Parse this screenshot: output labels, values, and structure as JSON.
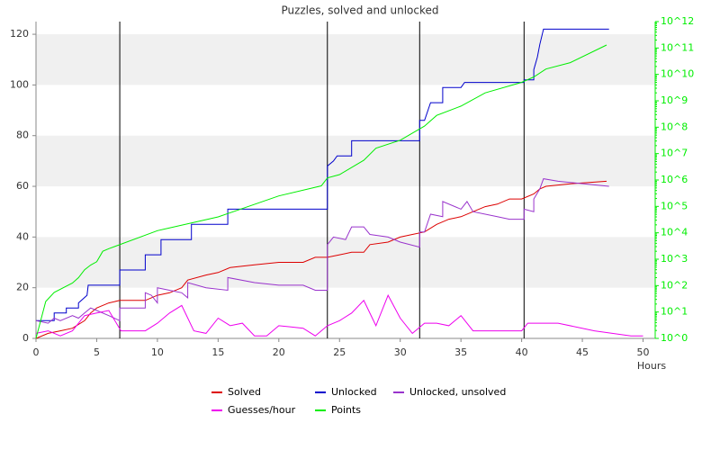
{
  "chart_data": {
    "type": "line",
    "title": "Puzzles, solved and unlocked",
    "x_label": "Hours",
    "xlim": [
      0,
      51
    ],
    "xticks": [
      0,
      5,
      10,
      15,
      20,
      25,
      30,
      35,
      40,
      45,
      50
    ],
    "ylim": [
      0,
      125
    ],
    "yticks": [
      0,
      20,
      40,
      60,
      80,
      100,
      120
    ],
    "y2lim": [
      1,
      1000000000000
    ],
    "y2scale": "log",
    "y2color": "#00ee00",
    "y2ticks": [
      {
        "value": 1,
        "label": "10^0"
      },
      {
        "value": 10,
        "label": "10^1"
      },
      {
        "value": 100,
        "label": "10^2"
      },
      {
        "value": 1000,
        "label": "10^3"
      },
      {
        "value": 10000,
        "label": "10^4"
      },
      {
        "value": 100000,
        "label": "10^5"
      },
      {
        "value": 1000000,
        "label": "10^6"
      },
      {
        "value": 10000000,
        "label": "10^7"
      },
      {
        "value": 100000000,
        "label": "10^8"
      },
      {
        "value": 1000000000,
        "label": "10^9"
      },
      {
        "value": 10000000000,
        "label": "10^10"
      },
      {
        "value": 100000000000,
        "label": "10^11"
      },
      {
        "value": 1000000000000,
        "label": "10^12"
      }
    ],
    "grid": "bands",
    "vlines": [
      6.9,
      24,
      31.6,
      40.2
    ],
    "series": [
      {
        "name": "Solved",
        "color": "#dd0000",
        "x": [
          0,
          1,
          2,
          3,
          4,
          4.5,
          5,
          6,
          6.9,
          9,
          9.5,
          10,
          11,
          12,
          12.5,
          14,
          15,
          16,
          18,
          20,
          22,
          23,
          24,
          25,
          26,
          27,
          27.5,
          29,
          30,
          31,
          32,
          33,
          34,
          35,
          36,
          37,
          38,
          39,
          40,
          41,
          41.5,
          42,
          44,
          47
        ],
        "values": [
          0,
          2,
          3,
          4,
          7,
          10,
          12,
          14,
          15,
          15,
          16,
          17,
          18,
          20,
          23,
          25,
          26,
          28,
          29,
          30,
          30,
          32,
          32,
          33,
          34,
          34,
          37,
          38,
          40,
          41,
          42,
          45,
          47,
          48,
          50,
          52,
          53,
          55,
          55,
          57,
          59,
          60,
          61,
          62
        ]
      },
      {
        "name": "Unlocked",
        "color": "#0000cc",
        "x": [
          0,
          1.5,
          1.5,
          2.5,
          2.5,
          3.5,
          3.5,
          4.2,
          4.3,
          6.9,
          6.9,
          9,
          9,
          10.3,
          10.3,
          12.8,
          12.8,
          15.8,
          15.8,
          24,
          24,
          24.5,
          24.8,
          26,
          26,
          31.6,
          31.6,
          32,
          32.5,
          33.5,
          33.5,
          35,
          35.3,
          40.2,
          40.2,
          41,
          41,
          41.3,
          41.5,
          41.8,
          47.2
        ],
        "values": [
          7,
          7,
          10,
          10,
          12,
          12,
          14,
          17,
          21,
          21,
          27,
          27,
          33,
          33,
          39,
          39,
          45,
          45,
          51,
          51,
          68,
          70,
          72,
          72,
          78,
          78,
          86,
          86,
          93,
          93,
          99,
          99,
          101,
          101,
          102,
          102,
          106,
          111,
          116,
          122,
          122
        ]
      },
      {
        "name": "Unlocked, unsolved",
        "color": "#9933cc",
        "x": [
          0,
          1,
          1.5,
          2,
          3,
          3.5,
          4,
          4.5,
          5,
          6,
          6.9,
          6.9,
          9,
          9,
          9.5,
          10,
          10,
          11,
          12,
          12.5,
          12.5,
          14,
          15.8,
          15.8,
          18,
          20,
          22,
          23,
          24,
          24,
          24.5,
          25.5,
          26,
          27,
          27.5,
          29,
          30,
          31.6,
          31.6,
          32,
          32.5,
          33.5,
          33.5,
          35,
          35.5,
          36,
          38,
          39,
          40.2,
          40.2,
          41,
          41,
          41.5,
          41.8,
          43,
          47.2
        ],
        "values": [
          7,
          6,
          8,
          7,
          9,
          8,
          10,
          12,
          11,
          9,
          7,
          12,
          12,
          18,
          17,
          14,
          20,
          19,
          18,
          16,
          22,
          20,
          19,
          24,
          22,
          21,
          21,
          19,
          19,
          37,
          40,
          39,
          44,
          44,
          41,
          40,
          38,
          36,
          42,
          42,
          49,
          48,
          54,
          51,
          54,
          50,
          48,
          47,
          47,
          51,
          50,
          55,
          59,
          63,
          62,
          60
        ]
      },
      {
        "name": "Guesses/hour",
        "color": "#ee00ee",
        "x": [
          0,
          1,
          2,
          3,
          4,
          5,
          6,
          7,
          9,
          10,
          11,
          12,
          13,
          14,
          15,
          16,
          17,
          18,
          19,
          20,
          21,
          22,
          23,
          24,
          25,
          26,
          27,
          28,
          29,
          30,
          31,
          32,
          33,
          34,
          35,
          36,
          40,
          40.5,
          43,
          46,
          49,
          50
        ],
        "values": [
          2,
          3,
          1,
          3,
          9,
          10,
          11,
          3,
          3,
          6,
          10,
          13,
          3,
          2,
          8,
          5,
          6,
          1,
          1,
          5,
          4.5,
          4,
          1,
          5,
          7,
          10,
          15,
          5,
          17,
          8,
          2,
          6,
          6,
          5,
          9,
          3,
          3,
          6,
          6,
          3,
          1,
          1
        ]
      },
      {
        "name": "Points",
        "color": "#00ee00",
        "axis": "y2",
        "x": [
          0,
          0.8,
          1.5,
          3,
          3.5,
          4,
          4.5,
          5,
          5.5,
          6,
          10,
          15,
          20,
          23.5,
          24,
          25,
          27,
          28,
          30,
          32,
          33,
          35,
          37,
          40,
          41,
          42,
          44,
          47
        ],
        "values": [
          1,
          25,
          55,
          125,
          200,
          400,
          600,
          800,
          2000,
          2500,
          12000,
          40000,
          250000,
          600000,
          1200000,
          1600000,
          5600000,
          16000000,
          32000000,
          110000000,
          280000000,
          630000000,
          2000000000,
          5000000000,
          8000000000,
          16000000000,
          28000000000,
          130000000000
        ]
      }
    ]
  }
}
